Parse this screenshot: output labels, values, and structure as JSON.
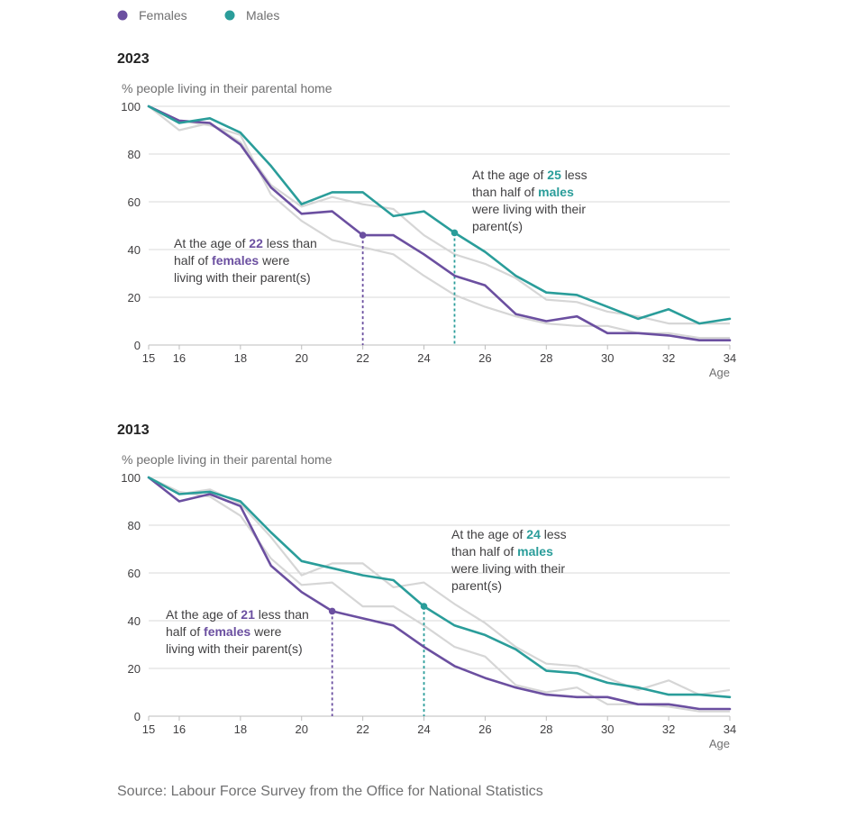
{
  "legend": [
    {
      "label": "Females",
      "color": "#6b4fa0"
    },
    {
      "label": "Males",
      "color": "#2a9d9a"
    }
  ],
  "source": "Source: Labour Force Survey from the Office for National Statistics",
  "chart_data": [
    {
      "type": "line",
      "title": "2023",
      "ylabel": "% people living in their parental home",
      "xlabel": "Age",
      "xlim": [
        15,
        34
      ],
      "ylim": [
        0,
        100
      ],
      "xticks": [
        15,
        16,
        18,
        20,
        22,
        24,
        26,
        28,
        30,
        32,
        34
      ],
      "yticks": [
        0,
        20,
        40,
        60,
        80,
        100
      ],
      "grid": true,
      "x": [
        15,
        16,
        17,
        18,
        19,
        20,
        21,
        22,
        23,
        24,
        25,
        26,
        27,
        28,
        29,
        30,
        31,
        32,
        33,
        34
      ],
      "series": [
        {
          "name": "Females",
          "color": "#6b4fa0",
          "values": [
            100,
            94,
            93,
            84,
            66,
            55,
            56,
            46,
            46,
            38,
            29,
            25,
            13,
            10,
            12,
            5,
            5,
            4,
            2,
            2
          ]
        },
        {
          "name": "Males",
          "color": "#2a9d9a",
          "values": [
            100,
            93,
            95,
            89,
            75,
            59,
            64,
            64,
            54,
            56,
            47,
            39,
            29,
            22,
            21,
            16,
            11,
            15,
            9,
            11
          ]
        }
      ],
      "background_series": [
        {
          "values": [
            100,
            90,
            93,
            85,
            67,
            58,
            62,
            59,
            57,
            46,
            38,
            34,
            28,
            19,
            18,
            14,
            12,
            9,
            9,
            9
          ]
        },
        {
          "values": [
            100,
            94,
            92,
            88,
            63,
            52,
            44,
            41,
            38,
            29,
            21,
            16,
            12,
            9,
            8,
            8,
            5,
            5,
            3,
            3
          ]
        }
      ],
      "annotations": [
        {
          "series": "Females",
          "x": 22,
          "y": 46,
          "lines": [
            [
              {
                "t": "At the age of "
              },
              {
                "t": "22",
                "s": "f"
              },
              {
                "t": " less than"
              }
            ],
            [
              {
                "t": "half of "
              },
              {
                "t": "females",
                "s": "f"
              },
              {
                "t": " were"
              }
            ],
            [
              {
                "t": "living with their parent(s)"
              }
            ]
          ]
        },
        {
          "series": "Males",
          "x": 25,
          "y": 47,
          "lines": [
            [
              {
                "t": "At the age of "
              },
              {
                "t": "25",
                "s": "m"
              },
              {
                "t": " less"
              }
            ],
            [
              {
                "t": "than half of "
              },
              {
                "t": "males",
                "s": "m"
              }
            ],
            [
              {
                "t": "were living with their"
              }
            ],
            [
              {
                "t": "parent(s)"
              }
            ]
          ]
        }
      ]
    },
    {
      "type": "line",
      "title": "2013",
      "ylabel": "% people living in their parental home",
      "xlabel": "Age",
      "xlim": [
        15,
        34
      ],
      "ylim": [
        0,
        100
      ],
      "xticks": [
        15,
        16,
        18,
        20,
        22,
        24,
        26,
        28,
        30,
        32,
        34
      ],
      "yticks": [
        0,
        20,
        40,
        60,
        80,
        100
      ],
      "grid": true,
      "x": [
        15,
        16,
        17,
        18,
        19,
        20,
        21,
        22,
        23,
        24,
        25,
        26,
        27,
        28,
        29,
        30,
        31,
        32,
        33,
        34
      ],
      "series": [
        {
          "name": "Females",
          "color": "#6b4fa0",
          "values": [
            100,
            90,
            93,
            88,
            63,
            52,
            44,
            41,
            38,
            29,
            21,
            16,
            12,
            9,
            8,
            8,
            5,
            5,
            3,
            3
          ]
        },
        {
          "name": "Males",
          "color": "#2a9d9a",
          "values": [
            100,
            93,
            94,
            90,
            77,
            65,
            62,
            59,
            57,
            46,
            38,
            34,
            28,
            19,
            18,
            14,
            12,
            9,
            9,
            8
          ]
        }
      ],
      "background_series": [
        {
          "values": [
            100,
            94,
            92,
            84,
            66,
            55,
            56,
            46,
            46,
            38,
            29,
            25,
            13,
            10,
            12,
            5,
            5,
            4,
            2,
            2
          ]
        },
        {
          "values": [
            100,
            93,
            95,
            89,
            75,
            59,
            64,
            64,
            54,
            56,
            47,
            39,
            29,
            22,
            21,
            16,
            11,
            15,
            9,
            11
          ]
        }
      ],
      "annotations": [
        {
          "series": "Females",
          "x": 21,
          "y": 44,
          "lines": [
            [
              {
                "t": "At the age of "
              },
              {
                "t": "21",
                "s": "f"
              },
              {
                "t": " less than"
              }
            ],
            [
              {
                "t": "half of "
              },
              {
                "t": "females",
                "s": "f"
              },
              {
                "t": " were"
              }
            ],
            [
              {
                "t": "living with their parent(s)"
              }
            ]
          ]
        },
        {
          "series": "Males",
          "x": 24,
          "y": 46,
          "lines": [
            [
              {
                "t": "At the age of "
              },
              {
                "t": "24",
                "s": "m"
              },
              {
                "t": " less"
              }
            ],
            [
              {
                "t": "than half of "
              },
              {
                "t": "males",
                "s": "m"
              }
            ],
            [
              {
                "t": "were living with their"
              }
            ],
            [
              {
                "t": "parent(s)"
              }
            ]
          ]
        }
      ]
    }
  ]
}
